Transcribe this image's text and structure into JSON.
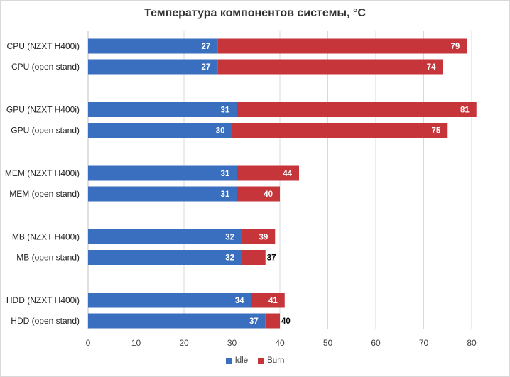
{
  "chart_data": {
    "type": "bar",
    "orientation": "horizontal",
    "stacked": "overlay",
    "title": "Температура компонентов системы, °C",
    "categories": [
      "CPU (NZXT H400i)",
      "CPU (open stand)",
      "GPU (NZXT H400i)",
      "GPU (open stand)",
      "MEM (NZXT H400i)",
      "MEM (open stand)",
      "MB (NZXT H400i)",
      "MB (open stand)",
      "HDD (NZXT H400i)",
      "HDD (open stand)"
    ],
    "series": [
      {
        "name": "Idle",
        "color": "#3a6fbf",
        "values": [
          27,
          27,
          31,
          30,
          31,
          31,
          32,
          32,
          34,
          37
        ]
      },
      {
        "name": "Burn",
        "color": "#c6353a",
        "values": [
          79,
          74,
          81,
          75,
          44,
          40,
          39,
          37,
          41,
          40
        ]
      }
    ],
    "xlim": [
      0,
      80
    ],
    "xticks": [
      0,
      10,
      20,
      30,
      40,
      50,
      60,
      70,
      80
    ],
    "grid": "vertical",
    "legend": "bottom"
  }
}
